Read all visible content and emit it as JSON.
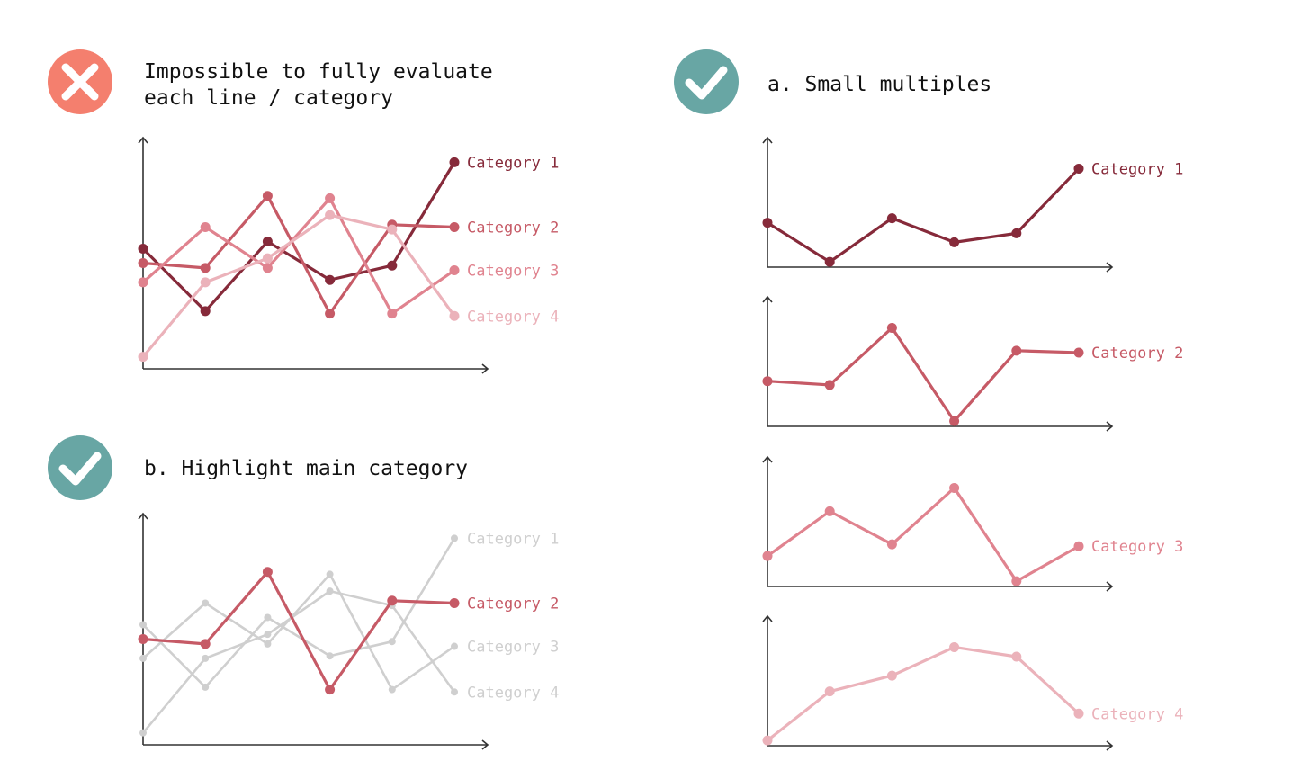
{
  "colors": {
    "cat1": "#862a3a",
    "cat2": "#c65a66",
    "cat3": "#e0838f",
    "cat4": "#ebb2ba",
    "muted": "#cfcfcf",
    "bad_icon": "#f47f6e",
    "good_icon": "#68a6a4",
    "axis": "#333333"
  },
  "panels": {
    "bad": {
      "icon": "cross-icon",
      "title_line1": "Impossible to fully evaluate",
      "title_line2": "each line / category"
    },
    "small_multiples": {
      "icon": "check-icon",
      "title": "a. Small multiples"
    },
    "highlight": {
      "icon": "check-icon",
      "title": "b. Highlight main category",
      "highlighted_series": "Category 2"
    }
  },
  "chart_data": {
    "type": "line",
    "x": [
      1,
      2,
      3,
      4,
      5,
      6
    ],
    "ylim": [
      0,
      10
    ],
    "series": [
      {
        "name": "Category 1",
        "color_key": "cat1",
        "values": [
          5.0,
          2.4,
          5.3,
          3.7,
          4.3,
          8.6
        ]
      },
      {
        "name": "Category 2",
        "color_key": "cat2",
        "values": [
          4.4,
          4.2,
          7.2,
          2.3,
          6.0,
          5.9
        ]
      },
      {
        "name": "Category 3",
        "color_key": "cat3",
        "values": [
          3.6,
          5.9,
          4.2,
          7.1,
          2.3,
          4.1
        ]
      },
      {
        "name": "Category 4",
        "color_key": "cat4",
        "values": [
          0.5,
          3.6,
          4.6,
          6.4,
          5.8,
          2.2
        ]
      }
    ]
  }
}
